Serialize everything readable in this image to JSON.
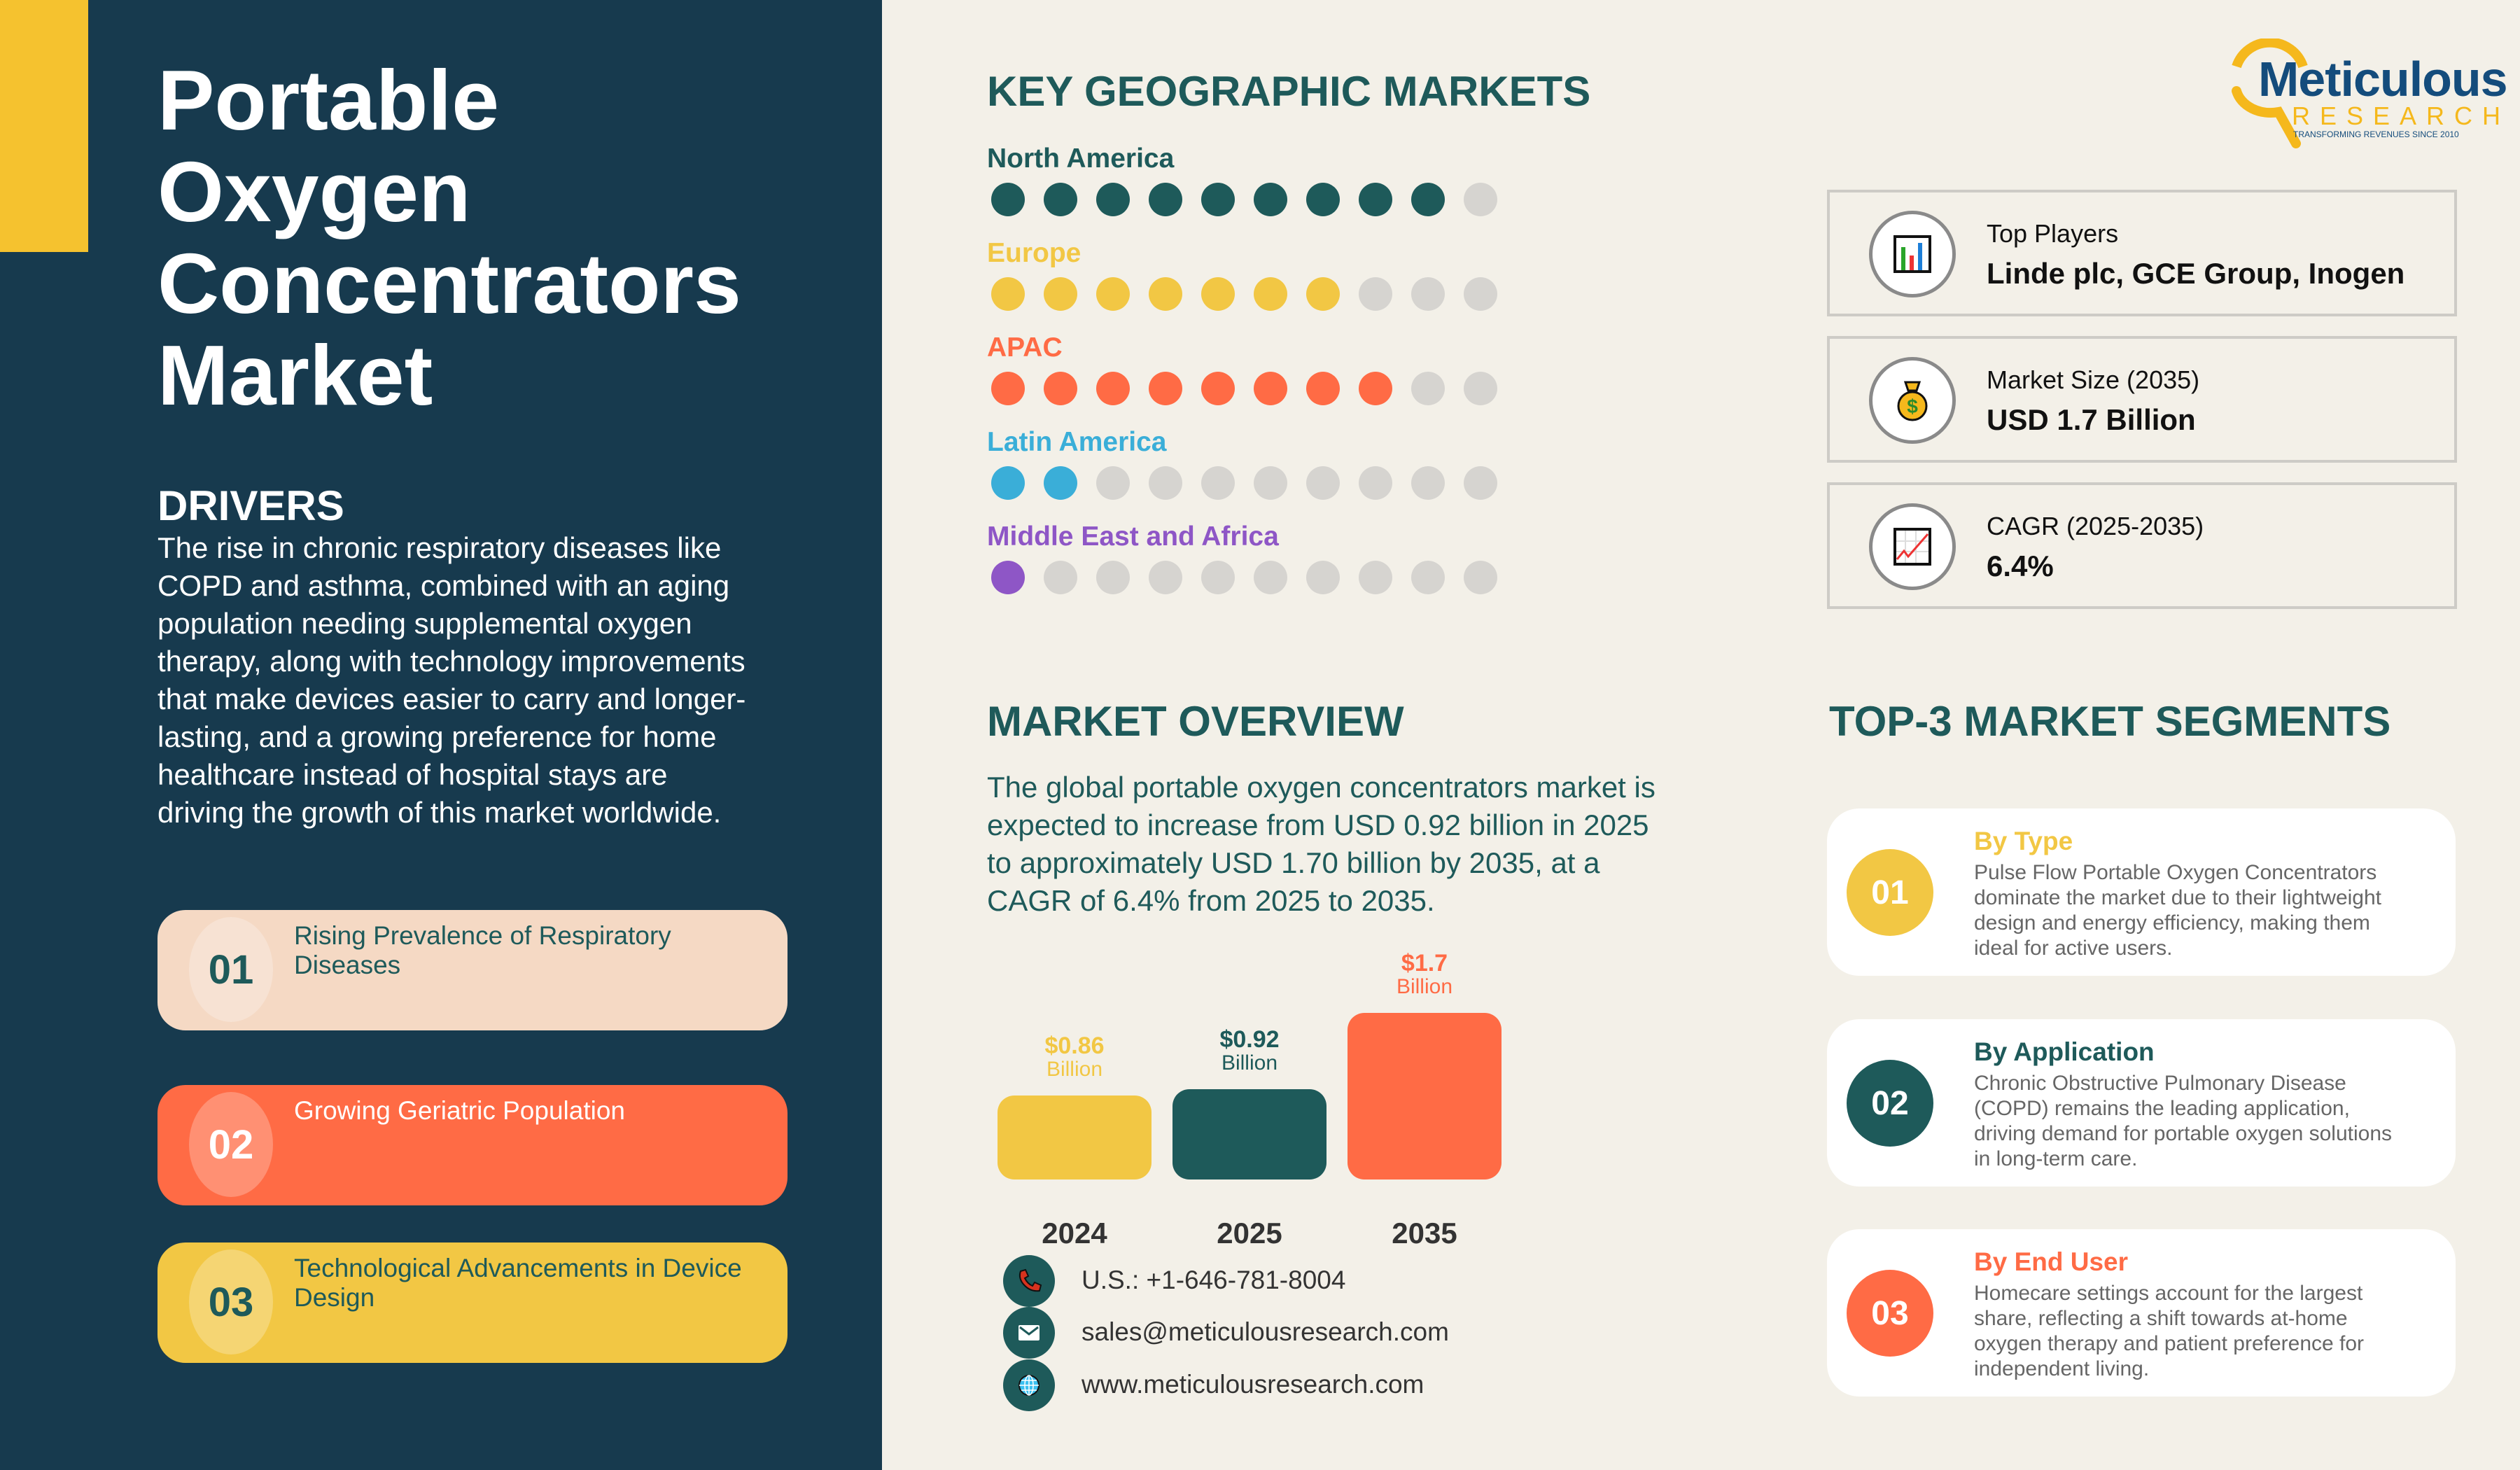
{
  "left": {
    "title_lines": [
      "Portable",
      "Oxygen",
      "Concentrators",
      "Market"
    ],
    "drivers_heading": "DRIVERS",
    "drivers_text": "The rise in chronic respiratory diseases like COPD and asthma, combined with an aging population needing supplemental oxygen therapy, along with technology improvements that make devices easier to carry and longer-lasting, and a growing preference for home healthcare instead of hospital stays are driving the growth of this market worldwide.",
    "driver_cards": [
      {
        "number": "01",
        "label": "Rising Prevalence of Respiratory Diseases",
        "bg": "#f5d9c4",
        "text_color": "#1e5a5a"
      },
      {
        "number": "02",
        "label": "Growing Geriatric Population",
        "bg": "#ff6b45",
        "text_color": "#ffffff"
      },
      {
        "number": "03",
        "label": "Technological Advancements in Device Design",
        "bg": "#f2c744",
        "text_color": "#1e5a5a"
      }
    ]
  },
  "logo": {
    "name": "Meticulous",
    "sub": "RESEARCH",
    "tagline": "TRANSFORMING REVENUES SINCE 2010"
  },
  "geo": {
    "heading": "KEY GEOGRAPHIC MARKETS",
    "total_dots": 10,
    "inactive_color": "#d6d4d0",
    "regions": [
      {
        "name": "North America",
        "filled": 9,
        "color": "#1e5a5a"
      },
      {
        "name": "Europe",
        "filled": 7,
        "color": "#f2c744"
      },
      {
        "name": "APAC",
        "filled": 8,
        "color": "#ff6b45"
      },
      {
        "name": "Latin America",
        "filled": 2,
        "color": "#3aaed8"
      },
      {
        "name": "Middle East and Africa",
        "filled": 1,
        "color": "#8e56c6"
      }
    ]
  },
  "info": [
    {
      "icon": "bar-chart-icon",
      "label": "Top Players",
      "value": "Linde plc, GCE Group, Inogen"
    },
    {
      "icon": "money-bag-icon",
      "label": "Market Size (2035)",
      "value": "USD 1.7 Billion"
    },
    {
      "icon": "trend-chart-icon",
      "label": "CAGR (2025-2035)",
      "value": "6.4%"
    }
  ],
  "overview": {
    "heading": "MARKET OVERVIEW",
    "text": "The global portable oxygen concentrators market is expected to increase from USD 0.92 billion in 2025 to approximately USD 1.70 billion by 2035, at a CAGR of 6.4% from 2025 to 2035."
  },
  "chart_data": {
    "type": "bar",
    "categories": [
      "2024",
      "2025",
      "2035"
    ],
    "values": [
      0.86,
      0.92,
      1.7
    ],
    "value_labels": [
      "$0.86",
      "$0.92",
      "$1.7"
    ],
    "unit_label": "Billion",
    "colors": [
      "#f2c744",
      "#1e5a5a",
      "#ff6b45"
    ],
    "title": "",
    "xlabel": "",
    "ylabel": "",
    "grid": false
  },
  "contact": {
    "phone": "U.S.: +1-646-781-8004",
    "email": "sales@meticulousresearch.com",
    "web": "www.meticulousresearch.com"
  },
  "segments": {
    "heading": "TOP-3 MARKET SEGMENTS",
    "items": [
      {
        "number": "01",
        "title": "By Type",
        "color": "#f2c744",
        "text": "Pulse Flow Portable Oxygen Concentrators dominate the market due to their lightweight design and energy efficiency, making them ideal for active users."
      },
      {
        "number": "02",
        "title": "By Application",
        "color": "#1e5a5a",
        "text": "Chronic Obstructive Pulmonary Disease (COPD) remains the leading application, driving demand for portable oxygen solutions in long-term care."
      },
      {
        "number": "03",
        "title": "By End User",
        "color": "#ff6b45",
        "text": "Homecare settings account for the largest share, reflecting a shift towards at-home oxygen therapy and patient preference for independent living."
      }
    ]
  }
}
